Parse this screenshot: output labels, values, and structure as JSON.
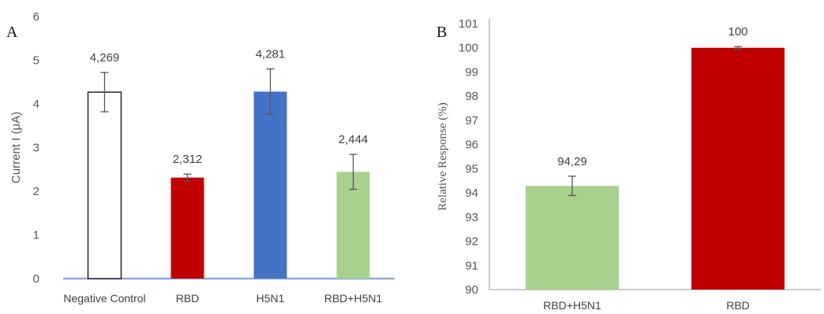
{
  "chart_data": [
    {
      "type": "bar",
      "panel_label": "A",
      "ylabel": "Current I (μA)",
      "ylim": [
        0,
        6
      ],
      "yticks": [
        "0",
        "1",
        "2",
        "3",
        "4",
        "5",
        "6"
      ],
      "categories": [
        "Negative Control",
        "RBD",
        "H5N1",
        "RBD+H5N1"
      ],
      "values": [
        4.269,
        2.312,
        4.281,
        2.444
      ],
      "value_labels": [
        "4,269",
        "2,312",
        "4,281",
        "2,444"
      ],
      "errors": [
        0.45,
        0.08,
        0.52,
        0.4
      ],
      "colors": [
        "#ffffff",
        "#c00000",
        "#4472c4",
        "#a9d18e"
      ],
      "grid": false
    },
    {
      "type": "bar",
      "panel_label": "B",
      "ylabel": "Relative Response (%)",
      "ylim": [
        90,
        101
      ],
      "yticks": [
        "90",
        "91",
        "92",
        "93",
        "94",
        "95",
        "96",
        "97",
        "98",
        "99",
        "100",
        "101"
      ],
      "categories": [
        "RBD+H5N1",
        "RBD"
      ],
      "values": [
        94.29,
        100
      ],
      "value_labels": [
        "94,29",
        "100"
      ],
      "errors": [
        0.4,
        0.05
      ],
      "colors": [
        "#a9d18e",
        "#c00000"
      ],
      "grid": false
    }
  ]
}
